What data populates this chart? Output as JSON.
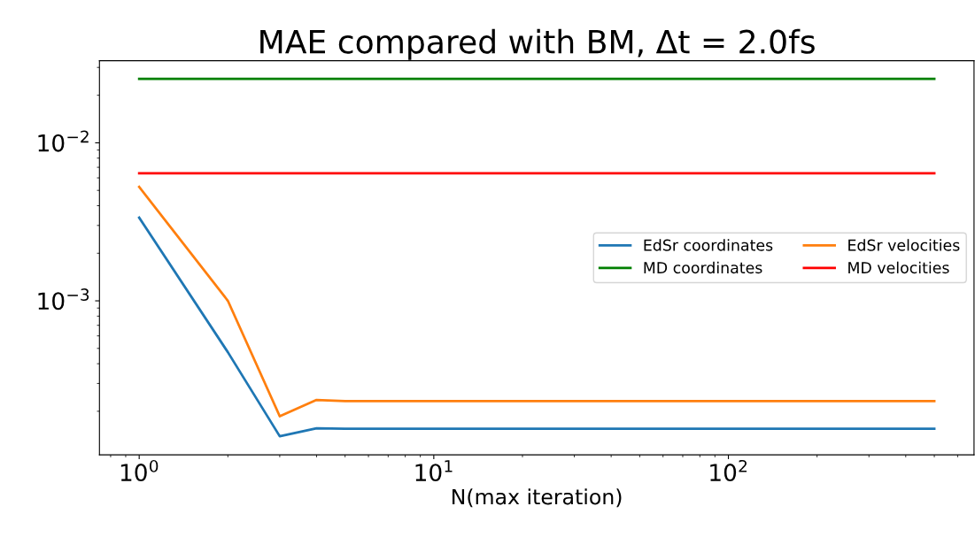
{
  "chart_data": {
    "type": "line",
    "title": "MAE compared with BM, Δt = 2.0fs",
    "xlabel": "N(max iteration)",
    "log": "xy",
    "grid": false,
    "legend": "right",
    "xlim": [
      0.733,
      682
    ],
    "ylim": [
      0.000106,
      0.0331
    ],
    "xticks": [
      {
        "value": 1,
        "label": "10$^{0}$"
      },
      {
        "value": 10,
        "label": "10$^{1}$"
      },
      {
        "value": 100,
        "label": "10$^{2}$"
      }
    ],
    "yticks": [
      {
        "value": 0.001,
        "label": "10$^{−3}$"
      },
      {
        "value": 0.01,
        "label": "10$^{−2}$"
      }
    ],
    "series": [
      {
        "name": "EdSr coordinates",
        "color": "#1f77b4",
        "x": [
          1,
          2,
          3,
          4,
          5,
          500
        ],
        "values": [
          0.00336,
          0.000473,
          0.000139,
          0.000156,
          0.000155,
          0.000155
        ]
      },
      {
        "name": "MD coordinates",
        "color": "#008000",
        "x": [
          1,
          500
        ],
        "values": [
          0.0254,
          0.0254
        ]
      },
      {
        "name": "EdSr velocities",
        "color": "#ff7f0e",
        "x": [
          1,
          2,
          3,
          4,
          5,
          500
        ],
        "values": [
          0.00526,
          0.001,
          0.000186,
          0.000236,
          0.000232,
          0.000232
        ]
      },
      {
        "name": "MD velocities",
        "color": "#ff0000",
        "x": [
          1,
          500
        ],
        "values": [
          0.00641,
          0.00641
        ]
      }
    ]
  }
}
